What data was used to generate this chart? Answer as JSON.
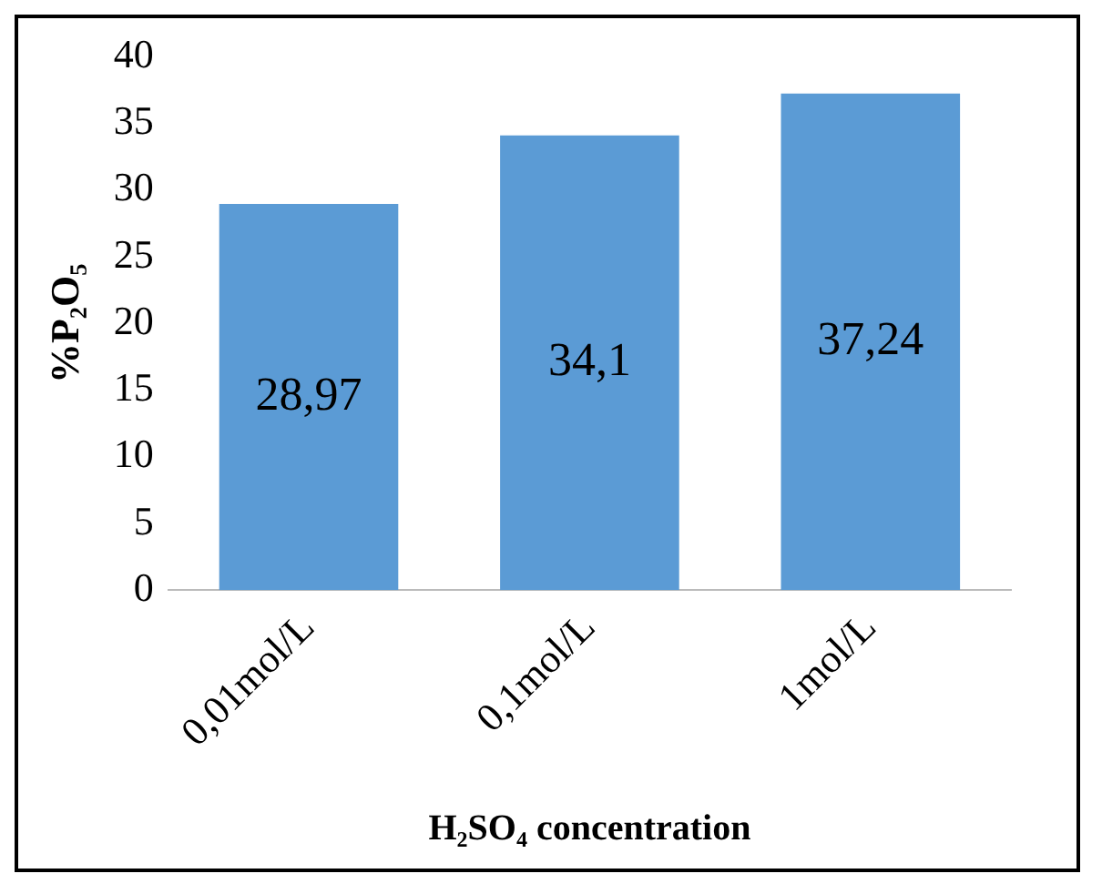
{
  "chart_data": {
    "type": "bar",
    "categories": [
      "0,01mol/L",
      "0,1mol/L",
      "1mol/L"
    ],
    "values": [
      28.97,
      34.1,
      37.24
    ],
    "value_labels": [
      "28,97",
      "34,1",
      "37,24"
    ],
    "color": "#5b9bd5",
    "ylabel": "%P₂O₅",
    "xlabel": "H₂SO₄ concentration",
    "ylim": [
      0,
      40
    ],
    "yticks": [
      0,
      5,
      10,
      15,
      20,
      25,
      30,
      35,
      40
    ],
    "grid": false,
    "legend": false
  }
}
